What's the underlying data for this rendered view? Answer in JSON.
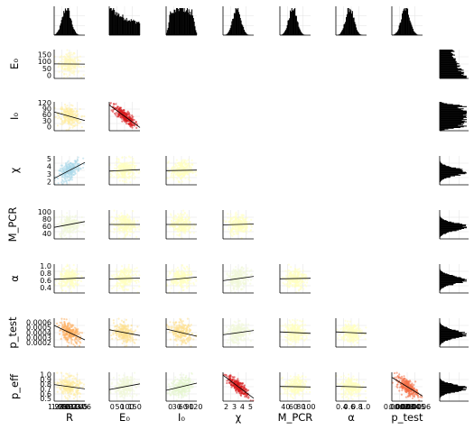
{
  "chart_data": {
    "type": "corner-plot",
    "variables": [
      {
        "key": "R",
        "label": "R",
        "ticks": [
          "1.98",
          "1.99",
          "2.00",
          "2.01",
          "2.02",
          "2.03",
          "2.04",
          "2.05",
          "2.06"
        ],
        "range": [
          1.975,
          2.065
        ]
      },
      {
        "key": "E0",
        "label": "E₀",
        "ticks": [
          "0",
          "50",
          "100",
          "150"
        ],
        "range": [
          -20,
          185
        ]
      },
      {
        "key": "I0",
        "label": "I₀",
        "ticks": [
          "0",
          "30",
          "60",
          "90",
          "120"
        ],
        "range": [
          -20,
          125
        ]
      },
      {
        "key": "chi",
        "label": "χ",
        "ticks": [
          "2",
          "3",
          "4",
          "5"
        ],
        "range": [
          1.6,
          5.4
        ]
      },
      {
        "key": "M_PCR",
        "label": "M_PCR",
        "ticks": [
          "40",
          "60",
          "80",
          "100"
        ],
        "range": [
          25,
          105
        ]
      },
      {
        "key": "alpha",
        "label": "α",
        "ticks": [
          "0.4",
          "0.6",
          "0.8",
          "1.0"
        ],
        "range": [
          0.25,
          1.05
        ]
      },
      {
        "key": "p_test",
        "label": "p_test",
        "ticks": [
          "0.0002",
          "0.0003",
          "0.0004",
          "0.0005",
          "0.0006"
        ],
        "range": [
          0.00012,
          0.00068
        ]
      },
      {
        "key": "p_eff",
        "label": "p_eff",
        "ticks": [
          "0.5",
          "0.6",
          "0.7",
          "0.8",
          "0.9",
          "1.0"
        ],
        "range": [
          0.45,
          1.05
        ]
      }
    ],
    "diagonal_histograms": {
      "R": {
        "type": "peaked",
        "center": 0.4,
        "width": 0.14
      },
      "E0": {
        "type": "decay",
        "center": 0.05,
        "width": 0.55
      },
      "I0": {
        "type": "plateau",
        "center": 0.5,
        "width": 0.32
      },
      "chi": {
        "type": "peaked",
        "center": 0.45,
        "width": 0.13
      },
      "M_PCR": {
        "type": "peaked",
        "center": 0.42,
        "width": 0.13
      },
      "alpha": {
        "type": "peaked",
        "center": 0.45,
        "width": 0.13
      },
      "p_test": {
        "type": "peaked",
        "center": 0.45,
        "width": 0.14
      },
      "p_eff": {
        "type": "peaked",
        "center": 0.45,
        "width": 0.12
      }
    },
    "pair_panels": [
      {
        "row": "E0",
        "col": "R",
        "corr": -0.1,
        "color": "#fff7bc",
        "slope": -0.01
      },
      {
        "row": "I0",
        "col": "R",
        "corr": -0.25,
        "color": "#ffeda0",
        "slope": -0.3
      },
      {
        "row": "I0",
        "col": "E0",
        "corr": -0.78,
        "color": "#d7191c",
        "slope": -0.78
      },
      {
        "row": "chi",
        "col": "R",
        "corr": 0.55,
        "color": "#abd9e9",
        "slope": 0.55
      },
      {
        "row": "chi",
        "col": "E0",
        "corr": 0.05,
        "color": "#ffffbf",
        "slope": 0.05
      },
      {
        "row": "chi",
        "col": "I0",
        "corr": 0.02,
        "color": "#ffffbf",
        "slope": 0.02
      },
      {
        "row": "M_PCR",
        "col": "R",
        "corr": 0.2,
        "color": "#f1f8d8",
        "slope": 0.2
      },
      {
        "row": "M_PCR",
        "col": "E0",
        "corr": 0.0,
        "color": "#ffffbf",
        "slope": 0.0
      },
      {
        "row": "M_PCR",
        "col": "I0",
        "corr": 0.0,
        "color": "#ffffbf",
        "slope": 0.0
      },
      {
        "row": "M_PCR",
        "col": "chi",
        "corr": 0.03,
        "color": "#ffffbf",
        "slope": 0.03
      },
      {
        "row": "alpha",
        "col": "R",
        "corr": 0.05,
        "color": "#ffffbf",
        "slope": 0.05
      },
      {
        "row": "alpha",
        "col": "E0",
        "corr": 0.03,
        "color": "#ffffbf",
        "slope": 0.03
      },
      {
        "row": "alpha",
        "col": "I0",
        "corr": 0.1,
        "color": "#ffffbf",
        "slope": 0.1
      },
      {
        "row": "alpha",
        "col": "chi",
        "corr": 0.15,
        "color": "#f1f8d8",
        "slope": 0.15
      },
      {
        "row": "alpha",
        "col": "M_PCR",
        "corr": 0.02,
        "color": "#ffffbf",
        "slope": 0.02
      },
      {
        "row": "p_test",
        "col": "R",
        "corr": -0.5,
        "color": "#fdae61",
        "slope": -0.5
      },
      {
        "row": "p_test",
        "col": "E0",
        "corr": -0.2,
        "color": "#fee090",
        "slope": -0.2
      },
      {
        "row": "p_test",
        "col": "I0",
        "corr": -0.25,
        "color": "#fee090",
        "slope": -0.25
      },
      {
        "row": "p_test",
        "col": "chi",
        "corr": 0.15,
        "color": "#f1f8d8",
        "slope": 0.15
      },
      {
        "row": "p_test",
        "col": "M_PCR",
        "corr": -0.05,
        "color": "#ffffbf",
        "slope": -0.05
      },
      {
        "row": "p_test",
        "col": "alpha",
        "corr": -0.05,
        "color": "#ffffbf",
        "slope": -0.05
      },
      {
        "row": "p_eff",
        "col": "R",
        "corr": -0.15,
        "color": "#ffeda0",
        "slope": -0.15
      },
      {
        "row": "p_eff",
        "col": "E0",
        "corr": 0.2,
        "color": "#f1f8d8",
        "slope": 0.2
      },
      {
        "row": "p_eff",
        "col": "I0",
        "corr": 0.25,
        "color": "#e6f5d0",
        "slope": 0.25
      },
      {
        "row": "p_eff",
        "col": "chi",
        "corr": -0.8,
        "color": "#d7191c",
        "slope": -0.8
      },
      {
        "row": "p_eff",
        "col": "M_PCR",
        "corr": -0.02,
        "color": "#ffffbf",
        "slope": -0.02
      },
      {
        "row": "p_eff",
        "col": "alpha",
        "corr": -0.03,
        "color": "#ffffbf",
        "slope": -0.03
      },
      {
        "row": "p_eff",
        "col": "p_test",
        "corr": -0.65,
        "color": "#f46d43",
        "slope": -0.65
      }
    ],
    "right_side_histograms": [
      "E0",
      "I0",
      "chi",
      "M_PCR",
      "alpha",
      "p_test",
      "p_eff"
    ],
    "grid": true,
    "legend": "none"
  }
}
